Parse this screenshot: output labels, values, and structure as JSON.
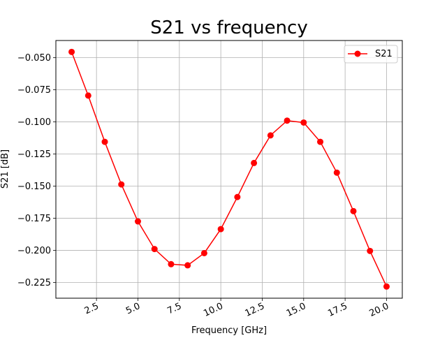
{
  "chart_data": {
    "type": "line",
    "title": "S21 vs frequency",
    "xlabel": "Frequency [GHz]",
    "ylabel": "S21 [dB]",
    "xlim": [
      0.05,
      20.95
    ],
    "ylim": [
      -0.2373,
      -0.0366
    ],
    "xticks": [
      2.5,
      5.0,
      7.5,
      10.0,
      12.5,
      15.0,
      17.5,
      20.0
    ],
    "xtick_labels": [
      "2.5",
      "5.0",
      "7.5",
      "10.0",
      "12.5",
      "15.0",
      "17.5",
      "20.0"
    ],
    "yticks": [
      -0.05,
      -0.075,
      -0.1,
      -0.125,
      -0.15,
      -0.175,
      -0.2,
      -0.225
    ],
    "ytick_labels": [
      "−0.050",
      "−0.075",
      "−0.100",
      "−0.125",
      "−0.150",
      "−0.175",
      "−0.200",
      "−0.225"
    ],
    "grid": true,
    "legend_position": "top-right",
    "series": [
      {
        "name": "S21",
        "color": "#ff0000",
        "marker": "circle",
        "x": [
          1,
          2,
          3,
          4,
          5,
          6,
          7,
          8,
          9,
          10,
          11,
          12,
          13,
          14,
          15,
          16,
          17,
          18,
          19,
          20
        ],
        "y": [
          -0.0455,
          -0.0795,
          -0.1155,
          -0.1487,
          -0.1775,
          -0.199,
          -0.2108,
          -0.2117,
          -0.2022,
          -0.1835,
          -0.1585,
          -0.132,
          -0.1105,
          -0.099,
          -0.1005,
          -0.1155,
          -0.1395,
          -0.1695,
          -0.2005,
          -0.2282
        ]
      }
    ]
  }
}
